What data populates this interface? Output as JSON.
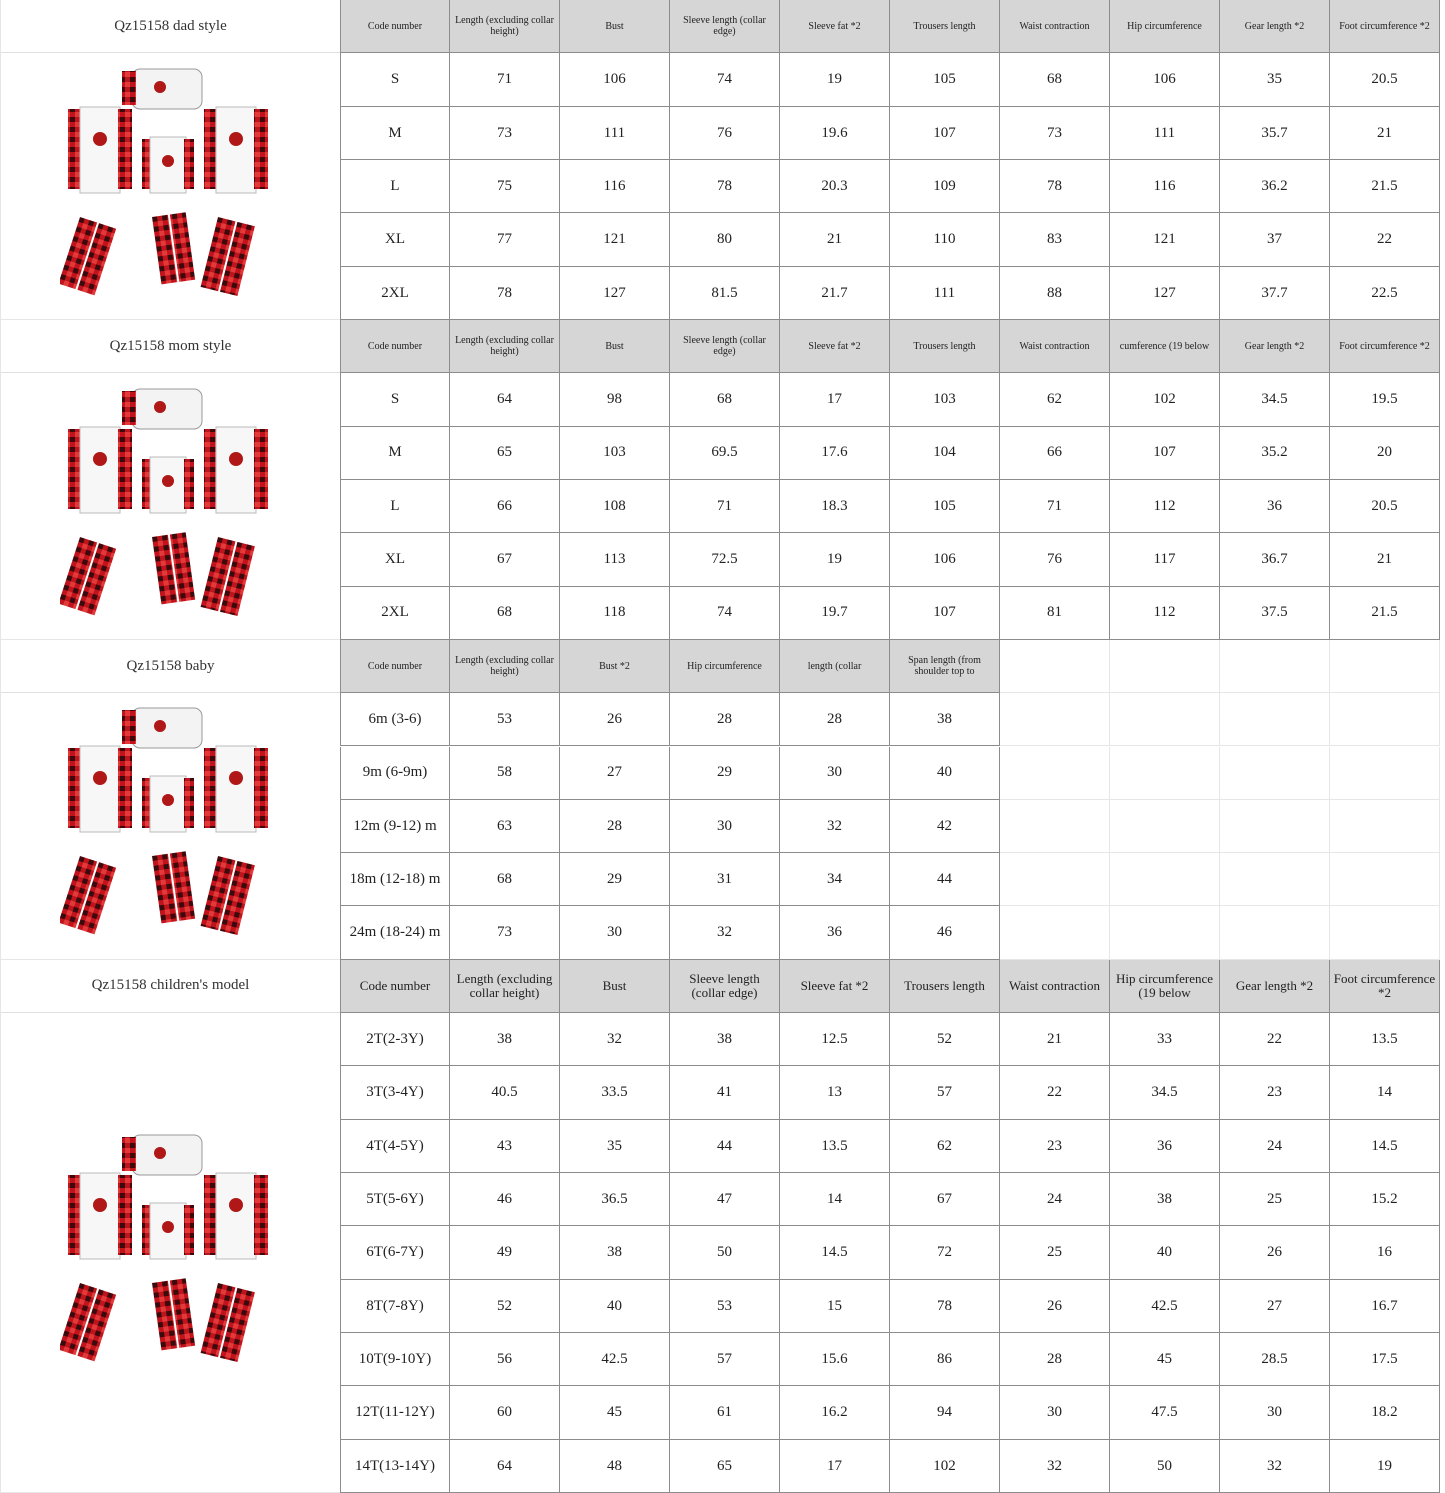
{
  "sections": [
    {
      "title": "Qz15158 dad style",
      "headers": [
        "Code number",
        "Length (excluding collar height)",
        "Bust",
        "Sleeve length (collar edge)",
        "Sleeve fat *2",
        "Trousers length",
        "Waist contraction",
        "Hip circumference",
        "Gear length *2",
        "Foot circumference *2"
      ],
      "rows": [
        [
          "S",
          71,
          106,
          74,
          19,
          105,
          68,
          106,
          35,
          20.5
        ],
        [
          "M",
          73,
          111,
          76,
          19.6,
          107,
          73,
          111,
          35.7,
          21
        ],
        [
          "L",
          75,
          116,
          78,
          20.3,
          109,
          78,
          116,
          36.2,
          21.5
        ],
        [
          "XL",
          77,
          121,
          80,
          21,
          110,
          83,
          121,
          37,
          22
        ],
        [
          "2XL",
          78,
          127,
          81.5,
          21.7,
          111,
          88,
          127,
          37.7,
          22.5
        ]
      ]
    },
    {
      "title": "Qz15158 mom style",
      "headers": [
        "Code number",
        "Length (excluding collar height)",
        "Bust",
        "Sleeve length (collar edge)",
        "Sleeve fat *2",
        "Trousers length",
        "Waist contraction",
        "cumference (19 below",
        "Gear length *2",
        "Foot circumference *2"
      ],
      "rows": [
        [
          "S",
          64,
          98,
          68,
          17,
          103,
          62,
          102,
          34.5,
          19.5
        ],
        [
          "M",
          65,
          103,
          69.5,
          17.6,
          104,
          66,
          107,
          35.2,
          20
        ],
        [
          "L",
          66,
          108,
          71,
          18.3,
          105,
          71,
          112,
          36,
          20.5
        ],
        [
          "XL",
          67,
          113,
          72.5,
          19,
          106,
          76,
          117,
          36.7,
          21
        ],
        [
          "2XL",
          68,
          118,
          74,
          19.7,
          107,
          81,
          112,
          37.5,
          21.5
        ]
      ]
    },
    {
      "title": "Qz15158 baby",
      "headers": [
        "Code number",
        "Length (excluding collar height)",
        "Bust *2",
        "Hip circumference",
        "length (collar",
        "Span length (from shoulder top to"
      ],
      "rows": [
        [
          "6m (3-6)",
          53,
          26,
          28,
          28,
          38
        ],
        [
          "9m (6-9m)",
          58,
          27,
          29,
          30,
          40
        ],
        [
          "12m (9-12) m",
          63,
          28,
          30,
          32,
          42
        ],
        [
          "18m (12-18) m",
          68,
          29,
          31,
          34,
          44
        ],
        [
          "24m (18-24) m",
          73,
          30,
          32,
          36,
          46
        ]
      ]
    },
    {
      "title": "Qz15158 children's model",
      "headers": [
        "Code number",
        "Length (excluding collar height)",
        "Bust",
        "Sleeve length (collar edge)",
        "Sleeve fat *2",
        "Trousers length",
        "Waist contraction",
        "Hip circumference (19 below",
        "Gear length *2",
        "Foot circumference *2"
      ],
      "rows": [
        [
          "2T(2-3Y)",
          38,
          32,
          38,
          12.5,
          52,
          21,
          33,
          22,
          13.5
        ],
        [
          "3T(3-4Y)",
          40.5,
          33.5,
          41,
          13,
          57,
          22,
          34.5,
          23,
          14
        ],
        [
          "4T(4-5Y)",
          43,
          35,
          44,
          13.5,
          62,
          23,
          36,
          24,
          14.5
        ],
        [
          "5T(5-6Y)",
          46,
          36.5,
          47,
          14,
          67,
          24,
          38,
          25,
          15.2
        ],
        [
          "6T(6-7Y)",
          49,
          38,
          50,
          14.5,
          72,
          25,
          40,
          26,
          16
        ],
        [
          "8T(7-8Y)",
          52,
          40,
          53,
          15,
          78,
          26,
          42.5,
          27,
          16.7
        ],
        [
          "10T(9-10Y)",
          56,
          42.5,
          57,
          15.6,
          86,
          28,
          45,
          28.5,
          17.5
        ],
        [
          "12T(11-12Y)",
          60,
          45,
          61,
          16.2,
          94,
          30,
          47.5,
          30,
          18.2
        ],
        [
          "14T(13-14Y)",
          64,
          48,
          65,
          17,
          102,
          32,
          50,
          32,
          19
        ]
      ]
    }
  ]
}
